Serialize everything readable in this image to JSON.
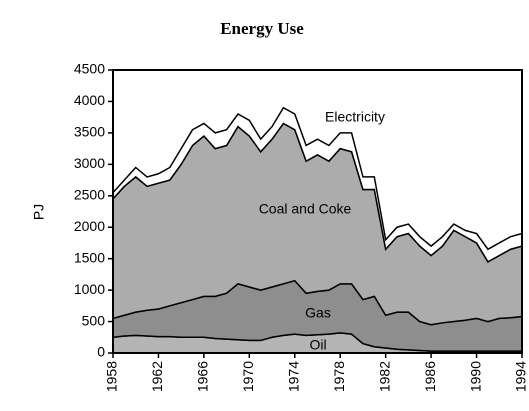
{
  "chart_data": {
    "type": "area",
    "stacked": true,
    "title": "Energy Use",
    "y_label": "PJ",
    "x": [
      1958,
      1959,
      1960,
      1961,
      1962,
      1963,
      1964,
      1965,
      1966,
      1967,
      1968,
      1969,
      1970,
      1971,
      1972,
      1973,
      1974,
      1975,
      1976,
      1977,
      1978,
      1979,
      1980,
      1981,
      1982,
      1983,
      1984,
      1985,
      1986,
      1987,
      1988,
      1989,
      1990,
      1991,
      1992,
      1993,
      1994
    ],
    "xlim": [
      1958,
      1994
    ],
    "xticks": [
      1958,
      1962,
      1966,
      1970,
      1974,
      1978,
      1982,
      1986,
      1990,
      1994
    ],
    "ylim": [
      0,
      4500
    ],
    "yticks": [
      0,
      500,
      1000,
      1500,
      2000,
      2500,
      3000,
      3500,
      4000,
      4500
    ],
    "series": [
      {
        "name": "Oil",
        "color": "#b4b4b4",
        "values": [
          250,
          270,
          280,
          270,
          260,
          260,
          250,
          250,
          250,
          230,
          220,
          210,
          200,
          200,
          250,
          280,
          300,
          280,
          290,
          300,
          320,
          300,
          150,
          100,
          80,
          60,
          50,
          40,
          30,
          30,
          30,
          30,
          30,
          30,
          30,
          30,
          30
        ]
      },
      {
        "name": "Gas",
        "color": "#8e8e8e",
        "values": [
          300,
          330,
          370,
          410,
          440,
          490,
          550,
          600,
          650,
          670,
          730,
          890,
          850,
          800,
          800,
          820,
          850,
          670,
          690,
          700,
          780,
          800,
          700,
          800,
          520,
          590,
          600,
          460,
          420,
          450,
          470,
          490,
          520,
          470,
          520,
          530,
          550
        ]
      },
      {
        "name": "Coal and Coke",
        "color": "#acacac",
        "values": [
          1900,
          2050,
          2150,
          1970,
          2000,
          2000,
          2200,
          2450,
          2550,
          2350,
          2350,
          2500,
          2400,
          2200,
          2350,
          2550,
          2400,
          2100,
          2170,
          2050,
          2150,
          2100,
          1750,
          1700,
          1050,
          1200,
          1250,
          1200,
          1100,
          1220,
          1450,
          1330,
          1200,
          950,
          1000,
          1090,
          1120
        ]
      },
      {
        "name": "Electricity",
        "color": "#ffffff",
        "values": [
          100,
          100,
          150,
          150,
          150,
          200,
          250,
          250,
          200,
          250,
          250,
          200,
          250,
          200,
          200,
          250,
          250,
          250,
          250,
          250,
          250,
          300,
          200,
          200,
          150,
          150,
          150,
          150,
          150,
          150,
          100,
          100,
          150,
          200,
          200,
          200,
          200
        ]
      }
    ]
  }
}
